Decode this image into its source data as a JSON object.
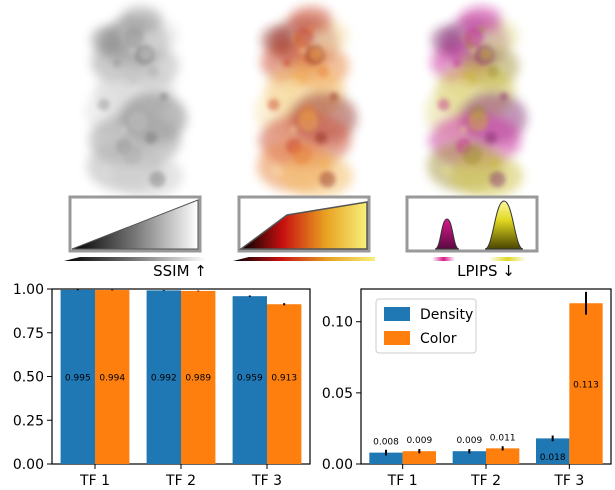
{
  "renderings": [
    {
      "name": "grayscale",
      "colors": [
        "#6f6f6f",
        "#8d8d8d",
        "#a8a8a8",
        "#c4c4c4",
        "#dadada"
      ]
    },
    {
      "name": "fire",
      "colors": [
        "#8a1d0f",
        "#c5361a",
        "#e6782b",
        "#f1b34f",
        "#f7dca0"
      ]
    },
    {
      "name": "magenta-yellow",
      "colors": [
        "#7a1b66",
        "#c21a8f",
        "#9a8a2a",
        "#c9b930",
        "#e2d98a"
      ]
    }
  ],
  "transfer_functions": [
    {
      "name": "TF 1",
      "shape": "ramp",
      "gradient": [
        "#000000",
        "#777777",
        "#ffffff"
      ]
    },
    {
      "name": "TF 2",
      "shape": "ramp-step",
      "gradient": [
        "#000000",
        "#c81010",
        "#e8a020",
        "#f7f07a"
      ]
    },
    {
      "name": "TF 3",
      "shape": "two-peaks",
      "peak1": "#d8198c",
      "peak2": "#e0d820"
    }
  ],
  "chart_data": [
    {
      "type": "bar",
      "title": "SSIM ↑",
      "categories": [
        "TF 1",
        "TF 2",
        "TF 3"
      ],
      "series": [
        {
          "name": "Density",
          "values": [
            0.995,
            0.992,
            0.959
          ],
          "errors": [
            0.002,
            0.002,
            0.004
          ],
          "color": "#1f77b4"
        },
        {
          "name": "Color",
          "values": [
            0.994,
            0.989,
            0.913
          ],
          "errors": [
            0.002,
            0.002,
            0.006
          ],
          "color": "#ff7f0e"
        }
      ],
      "value_labels": [
        [
          "0.995",
          "0.994"
        ],
        [
          "0.992",
          "0.989"
        ],
        [
          "0.959",
          "0.913"
        ]
      ],
      "ylim": [
        0,
        1.0
      ],
      "yticks": [
        "0.00",
        "0.25",
        "0.50",
        "0.75",
        "1.00"
      ],
      "ytick_values": [
        0,
        0.25,
        0.5,
        0.75,
        1.0
      ],
      "legend": false
    },
    {
      "type": "bar",
      "title": "LPIPS ↓",
      "categories": [
        "TF 1",
        "TF 2",
        "TF 3"
      ],
      "series": [
        {
          "name": "Density",
          "values": [
            0.008,
            0.009,
            0.018
          ],
          "errors": [
            0.002,
            0.0015,
            0.002
          ],
          "color": "#1f77b4"
        },
        {
          "name": "Color",
          "values": [
            0.009,
            0.011,
            0.113
          ],
          "errors": [
            0.0015,
            0.0015,
            0.008
          ],
          "color": "#ff7f0e"
        }
      ],
      "value_labels": [
        [
          "0.008",
          "0.009"
        ],
        [
          "0.009",
          "0.011"
        ],
        [
          "0.018",
          "0.113"
        ]
      ],
      "ylim": [
        0,
        0.123
      ],
      "yticks": [
        "0.00",
        "0.05",
        "0.10"
      ],
      "ytick_values": [
        0,
        0.05,
        0.1
      ],
      "legend": true,
      "legend_position": "top-left",
      "legend_labels": [
        "Density",
        "Color"
      ]
    }
  ]
}
